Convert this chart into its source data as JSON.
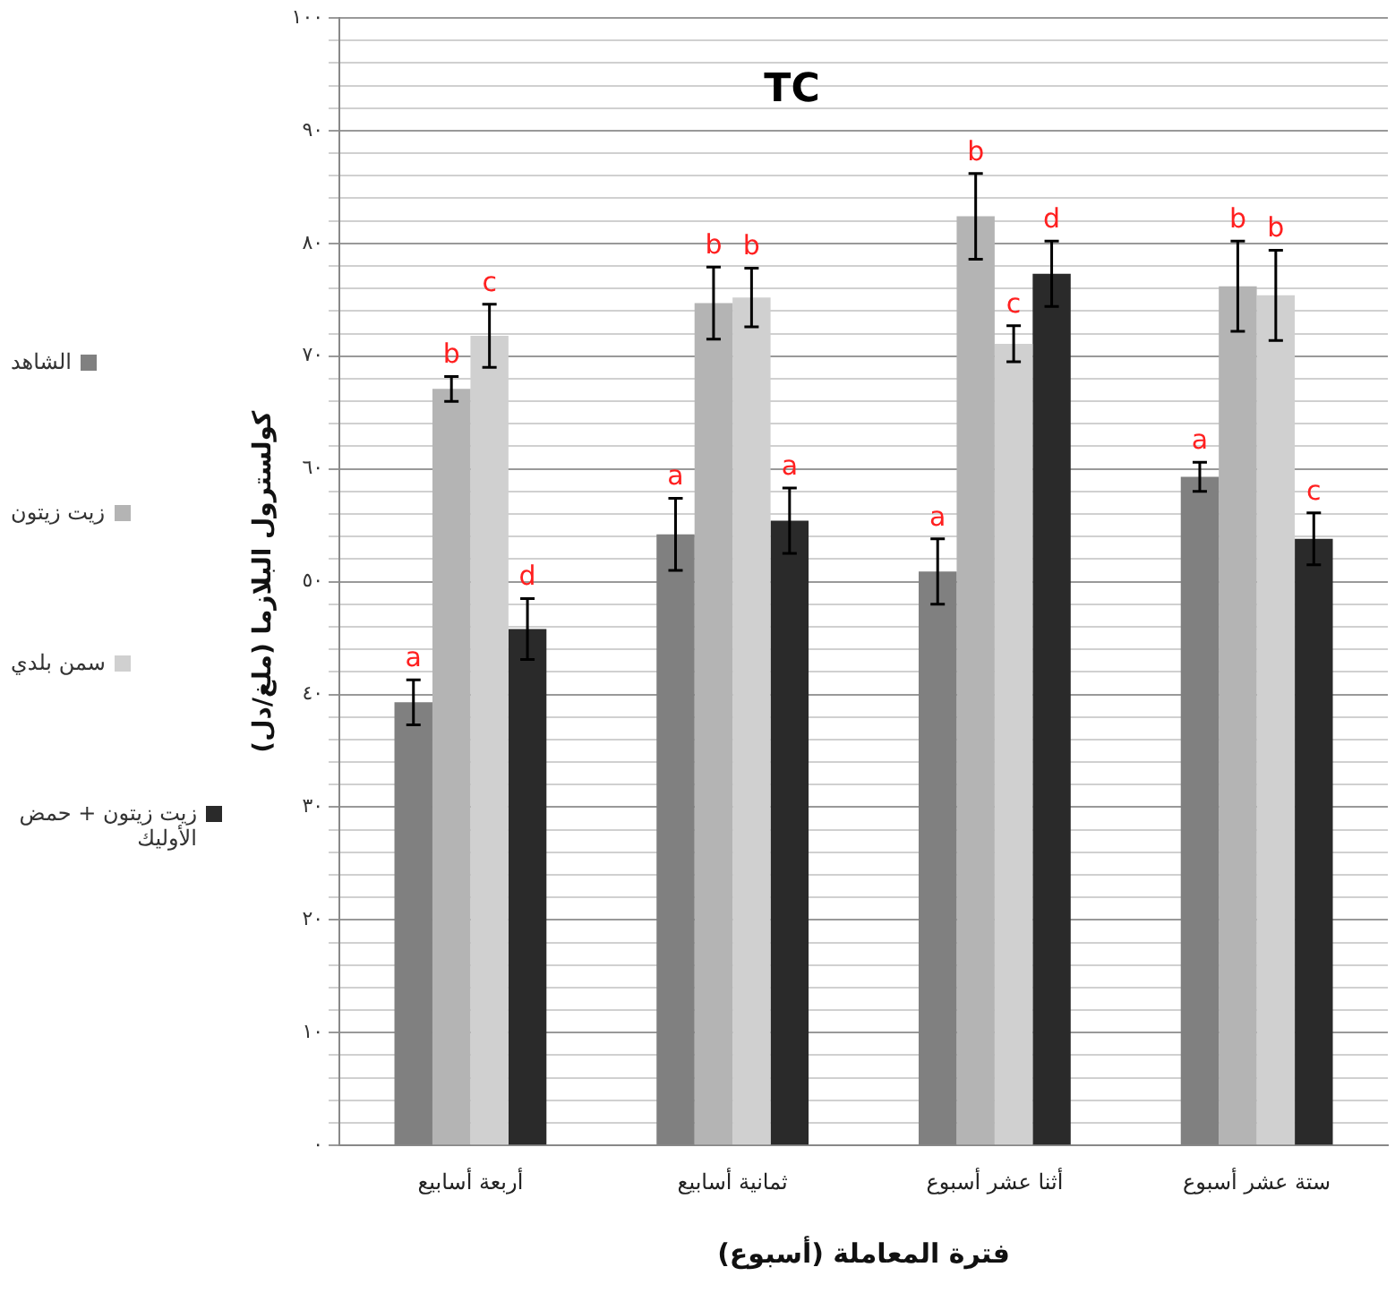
{
  "chart_data": {
    "type": "bar",
    "title": "TC",
    "xlabel": "فترة المعاملة (أسبوع)",
    "ylabel": "كولسترول البلازما (ملغ/دل)",
    "categories": [
      "أربعة أسابيع",
      "ثمانية أسابيع",
      "أثنا عشر أسبوع",
      "ستة عشر أسبوع"
    ],
    "series": [
      {
        "name": "الشاهد",
        "color": "#808080",
        "values": [
          39.3,
          54.2,
          50.9,
          59.3
        ],
        "errors": [
          2.0,
          3.2,
          2.9,
          1.3
        ],
        "value_labels": [
          "a",
          "a",
          "a",
          "a"
        ]
      },
      {
        "name": "زيت زيتون",
        "color": "#b4b4b4",
        "values": [
          67.1,
          74.7,
          82.4,
          76.2
        ],
        "errors": [
          1.1,
          3.2,
          3.8,
          4.0
        ],
        "value_labels": [
          "b",
          "b",
          "b",
          "b"
        ]
      },
      {
        "name": "سمن بلدي",
        "color": "#d0d0d0",
        "values": [
          71.8,
          75.2,
          71.1,
          75.4
        ],
        "errors": [
          2.8,
          2.6,
          1.6,
          4.0
        ],
        "value_labels": [
          "c",
          "b",
          "c",
          "b"
        ]
      },
      {
        "name": "زيت زيتون + حمض الأوليك",
        "color": "#2a2a2a",
        "values": [
          45.8,
          55.4,
          77.3,
          53.8
        ],
        "errors": [
          2.7,
          2.9,
          2.9,
          2.3
        ],
        "value_labels": [
          "d",
          "a",
          "d",
          "c"
        ]
      }
    ],
    "ylim": [
      0,
      100
    ],
    "yticks": [
      {
        "value": 0,
        "label": "٠"
      },
      {
        "value": 2,
        "label": null
      },
      {
        "value": 4,
        "label": null
      },
      {
        "value": 6,
        "label": null
      },
      {
        "value": 8,
        "label": null
      },
      {
        "value": 10,
        "label": "١٠"
      },
      {
        "value": 12,
        "label": null
      },
      {
        "value": 14,
        "label": null
      },
      {
        "value": 16,
        "label": null
      },
      {
        "value": 18,
        "label": null
      },
      {
        "value": 20,
        "label": "٢٠"
      },
      {
        "value": 22,
        "label": null
      },
      {
        "value": 24,
        "label": null
      },
      {
        "value": 26,
        "label": null
      },
      {
        "value": 28,
        "label": null
      },
      {
        "value": 30,
        "label": "٣٠"
      },
      {
        "value": 32,
        "label": null
      },
      {
        "value": 34,
        "label": null
      },
      {
        "value": 36,
        "label": null
      },
      {
        "value": 38,
        "label": null
      },
      {
        "value": 40,
        "label": "٤٠"
      },
      {
        "value": 42,
        "label": null
      },
      {
        "value": 44,
        "label": null
      },
      {
        "value": 46,
        "label": null
      },
      {
        "value": 48,
        "label": null
      },
      {
        "value": 50,
        "label": "٥٠"
      },
      {
        "value": 52,
        "label": null
      },
      {
        "value": 54,
        "label": null
      },
      {
        "value": 56,
        "label": null
      },
      {
        "value": 58,
        "label": null
      },
      {
        "value": 60,
        "label": "٦٠"
      },
      {
        "value": 62,
        "label": null
      },
      {
        "value": 64,
        "label": null
      },
      {
        "value": 66,
        "label": null
      },
      {
        "value": 68,
        "label": null
      },
      {
        "value": 70,
        "label": "٧٠"
      },
      {
        "value": 72,
        "label": null
      },
      {
        "value": 74,
        "label": null
      },
      {
        "value": 76,
        "label": null
      },
      {
        "value": 78,
        "label": null
      },
      {
        "value": 80,
        "label": "٨٠"
      },
      {
        "value": 82,
        "label": null
      },
      {
        "value": 84,
        "label": null
      },
      {
        "value": 86,
        "label": null
      },
      {
        "value": 88,
        "label": null
      },
      {
        "value": 90,
        "label": "٩٠"
      },
      {
        "value": 92,
        "label": null
      },
      {
        "value": 94,
        "label": null
      },
      {
        "value": 96,
        "label": null
      },
      {
        "value": 98,
        "label": null
      },
      {
        "value": 100,
        "label": "١٠٠"
      }
    ],
    "grid": "y",
    "legend": "left"
  }
}
